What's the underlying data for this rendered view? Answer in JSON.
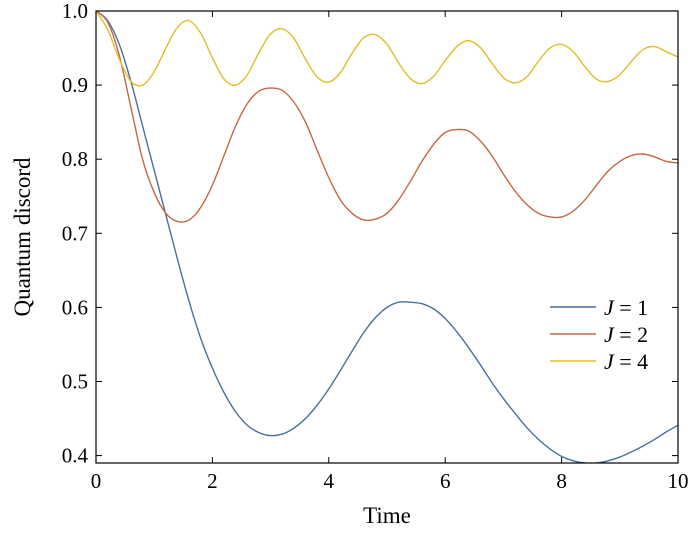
{
  "chart_data": {
    "type": "line",
    "title": "",
    "xlabel": "Time",
    "ylabel": "Quantum discord",
    "xlim": [
      0,
      10
    ],
    "ylim": [
      0.39,
      1.0
    ],
    "xticks": [
      0,
      2,
      4,
      6,
      8,
      10
    ],
    "xtick_labels": [
      "0",
      "2",
      "4",
      "6",
      "8",
      "10"
    ],
    "yticks": [
      0.4,
      0.5,
      0.6,
      0.7,
      0.8,
      0.9,
      1.0
    ],
    "ytick_labels": [
      "0.4",
      "0.5",
      "0.6",
      "0.7",
      "0.8",
      "0.9",
      "1.0"
    ],
    "grid": false,
    "legend_position": "right",
    "series": [
      {
        "name": "J = 1",
        "legend_var": "J",
        "legend_rest": " = 1",
        "color": "#4a6f9c",
        "x": [
          0,
          0.2,
          0.4,
          0.6,
          0.8,
          1.0,
          1.2,
          1.4,
          1.6,
          1.8,
          2.0,
          2.2,
          2.4,
          2.6,
          2.8,
          3.0,
          3.2,
          3.4,
          3.6,
          3.8,
          4.0,
          4.2,
          4.4,
          4.6,
          4.8,
          5.0,
          5.2,
          5.4,
          5.6,
          5.8,
          6.0,
          6.2,
          6.4,
          6.6,
          6.8,
          7.0,
          7.2,
          7.4,
          7.6,
          7.8,
          8.0,
          8.2,
          8.4,
          8.6,
          8.8,
          9.0,
          9.2,
          9.4,
          9.6,
          9.8,
          10.0
        ],
        "y": [
          1.0,
          0.987,
          0.955,
          0.905,
          0.845,
          0.785,
          0.725,
          0.665,
          0.608,
          0.558,
          0.518,
          0.485,
          0.459,
          0.441,
          0.431,
          0.427,
          0.429,
          0.437,
          0.45,
          0.468,
          0.49,
          0.515,
          0.541,
          0.566,
          0.586,
          0.6,
          0.607,
          0.607,
          0.605,
          0.598,
          0.585,
          0.567,
          0.546,
          0.523,
          0.499,
          0.477,
          0.457,
          0.438,
          0.422,
          0.409,
          0.399,
          0.393,
          0.39,
          0.39,
          0.393,
          0.398,
          0.405,
          0.413,
          0.422,
          0.432,
          0.441
        ]
      },
      {
        "name": "J = 2",
        "legend_var": "J",
        "legend_rest": " = 2",
        "color": "#c06a45",
        "x": [
          0,
          0.2,
          0.4,
          0.6,
          0.8,
          1.0,
          1.2,
          1.4,
          1.6,
          1.8,
          2.0,
          2.2,
          2.4,
          2.6,
          2.8,
          3.0,
          3.2,
          3.4,
          3.6,
          3.8,
          4.0,
          4.2,
          4.4,
          4.6,
          4.8,
          5.0,
          5.2,
          5.4,
          5.6,
          5.8,
          6.0,
          6.2,
          6.4,
          6.6,
          6.8,
          7.0,
          7.2,
          7.4,
          7.6,
          7.8,
          8.0,
          8.2,
          8.4,
          8.6,
          8.8,
          9.0,
          9.2,
          9.4,
          9.6,
          9.8,
          10.0
        ],
        "y": [
          1.0,
          0.985,
          0.94,
          0.87,
          0.8,
          0.755,
          0.727,
          0.716,
          0.718,
          0.735,
          0.765,
          0.805,
          0.845,
          0.875,
          0.892,
          0.896,
          0.893,
          0.877,
          0.85,
          0.812,
          0.775,
          0.745,
          0.727,
          0.718,
          0.719,
          0.727,
          0.745,
          0.77,
          0.797,
          0.82,
          0.836,
          0.84,
          0.838,
          0.825,
          0.805,
          0.78,
          0.757,
          0.739,
          0.727,
          0.722,
          0.722,
          0.73,
          0.745,
          0.765,
          0.784,
          0.797,
          0.805,
          0.807,
          0.803,
          0.797,
          0.795
        ]
      },
      {
        "name": "J = 4",
        "legend_var": "J",
        "legend_rest": " = 4",
        "color": "#e0bd2a",
        "x": [
          0,
          0.2,
          0.4,
          0.6,
          0.8,
          1.0,
          1.2,
          1.4,
          1.6,
          1.8,
          2.0,
          2.2,
          2.4,
          2.6,
          2.8,
          3.0,
          3.2,
          3.4,
          3.6,
          3.8,
          4.0,
          4.2,
          4.4,
          4.6,
          4.8,
          5.0,
          5.2,
          5.4,
          5.6,
          5.8,
          6.0,
          6.2,
          6.4,
          6.6,
          6.8,
          7.0,
          7.2,
          7.4,
          7.6,
          7.8,
          8.0,
          8.2,
          8.4,
          8.6,
          8.8,
          9.0,
          9.2,
          9.4,
          9.6,
          9.8,
          10.0
        ],
        "y": [
          1.0,
          0.975,
          0.935,
          0.905,
          0.9,
          0.918,
          0.95,
          0.978,
          0.987,
          0.97,
          0.937,
          0.908,
          0.9,
          0.914,
          0.944,
          0.969,
          0.976,
          0.963,
          0.935,
          0.911,
          0.904,
          0.917,
          0.943,
          0.964,
          0.968,
          0.955,
          0.93,
          0.909,
          0.902,
          0.912,
          0.933,
          0.952,
          0.96,
          0.951,
          0.93,
          0.91,
          0.903,
          0.911,
          0.932,
          0.95,
          0.955,
          0.945,
          0.925,
          0.908,
          0.905,
          0.914,
          0.932,
          0.948,
          0.952,
          0.945,
          0.938
        ]
      }
    ]
  }
}
